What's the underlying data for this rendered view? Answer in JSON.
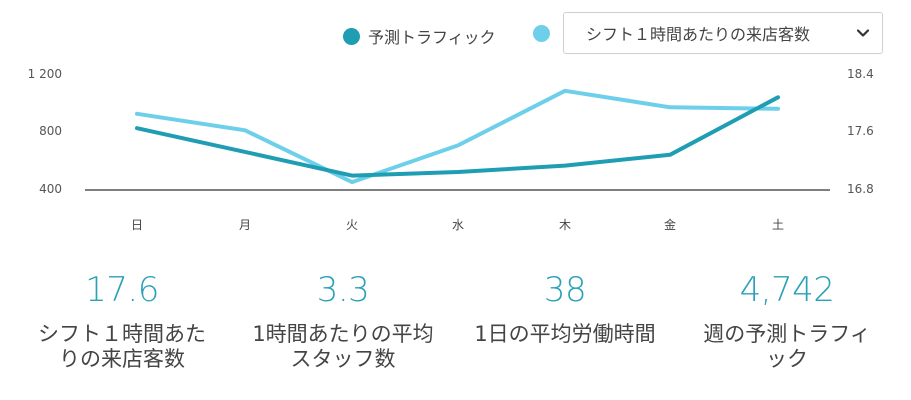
{
  "legend": {
    "traffic_label": "予測トラフィック",
    "traffic_color": "#1e9db3",
    "shift_color": "#6dcfea"
  },
  "select": {
    "value": "シフト１時間あたりの来店客数",
    "icon": "chevron-down-icon"
  },
  "axes": {
    "left_ticks": [
      "1 200",
      "800",
      "400"
    ],
    "right_ticks": [
      "18.4",
      "17.6",
      "16.8"
    ],
    "x_ticks": [
      "日",
      "月",
      "火",
      "水",
      "木",
      "金",
      "土"
    ]
  },
  "chart_data": {
    "type": "line",
    "title": "",
    "categories": [
      "日",
      "月",
      "火",
      "水",
      "木",
      "金",
      "土"
    ],
    "series": [
      {
        "name": "予測トラフィック",
        "axis": "left",
        "color": "#1e9db3",
        "values": [
          830,
          665,
          500,
          525,
          570,
          645,
          1045
        ]
      },
      {
        "name": "シフト１時間あたりの来店客数",
        "axis": "right",
        "color": "#6dcfea",
        "values": [
          17.86,
          17.63,
          16.91,
          17.42,
          18.18,
          17.95,
          17.93
        ]
      }
    ],
    "y_left": {
      "ticks": [
        400,
        800,
        1200
      ],
      "ylim": [
        400,
        1200
      ]
    },
    "y_right": {
      "ticks": [
        16.8,
        17.6,
        18.4
      ],
      "ylim": [
        16.8,
        18.4
      ]
    },
    "xlabel": "",
    "ylabel": "",
    "grid": false,
    "legend_position": "top-right"
  },
  "stats": [
    {
      "value": "17.6",
      "label": "シフト１時間あたりの来店客数"
    },
    {
      "value": "3.3",
      "label": "1時間あたりの平均スタッフ数"
    },
    {
      "value": "38",
      "label": "1日の平均労働時間"
    },
    {
      "value": "4,742",
      "label": "週の予測トラフィック"
    }
  ]
}
